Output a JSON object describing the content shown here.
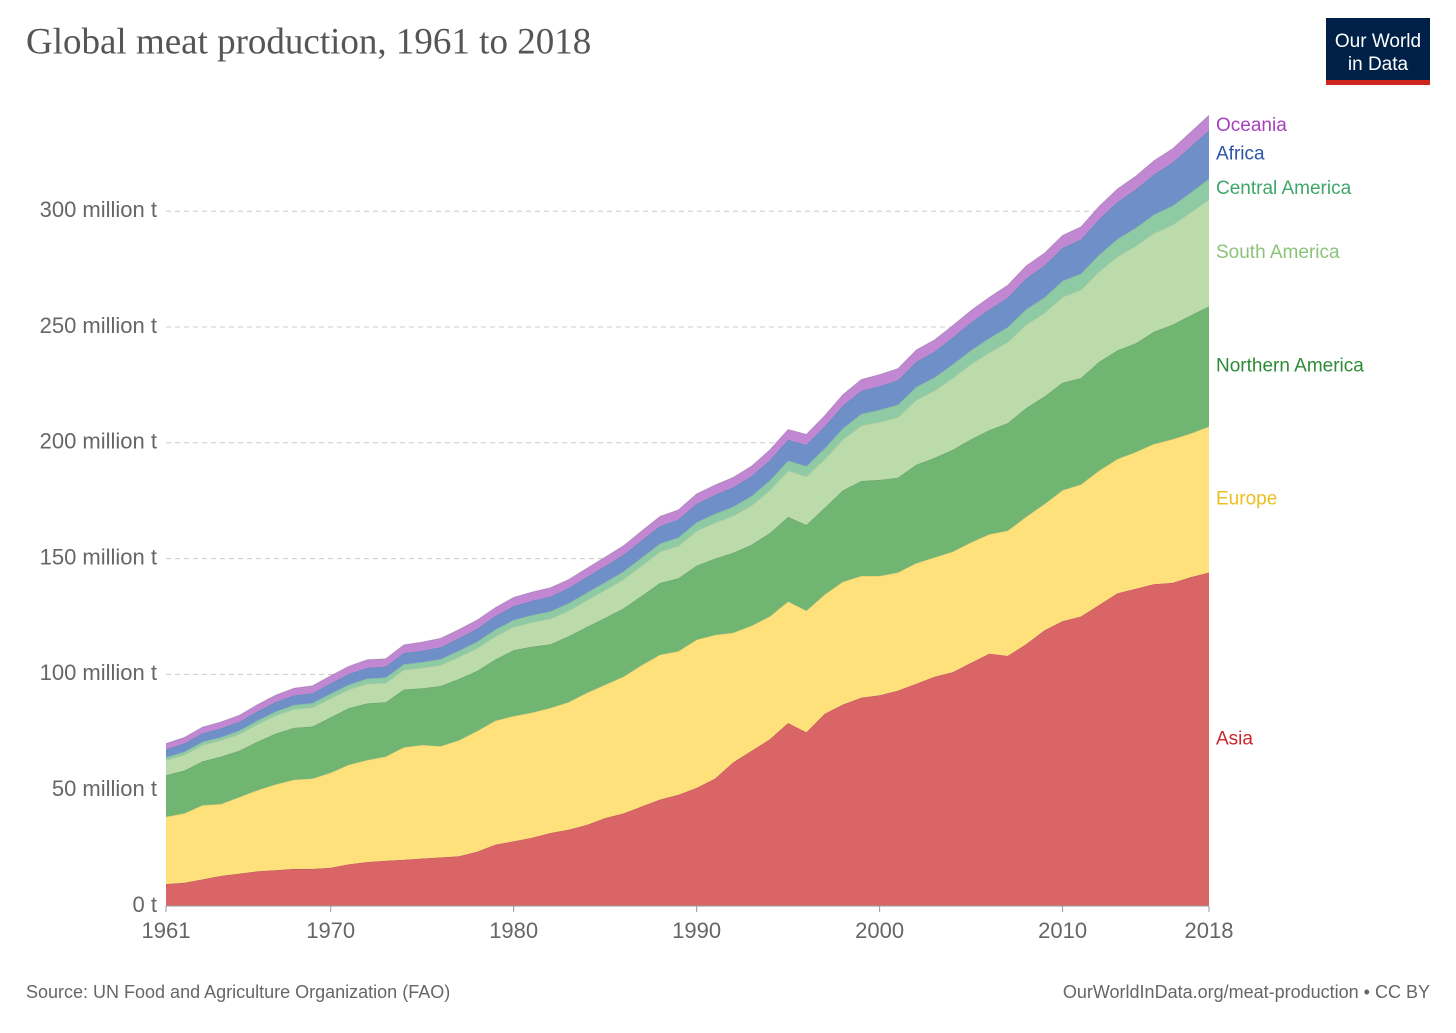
{
  "chart_data": {
    "type": "stacked-area",
    "title": "Global meat production, 1961 to 2018",
    "logo": [
      "Our World",
      "in Data"
    ],
    "source": "Source: UN Food and Agriculture Organization (FAO)",
    "credit": "OurWorldInData.org/meat-production • CC BY",
    "x": [
      1961,
      1962,
      1963,
      1964,
      1965,
      1966,
      1967,
      1968,
      1969,
      1970,
      1971,
      1972,
      1973,
      1974,
      1975,
      1976,
      1977,
      1978,
      1979,
      1980,
      1981,
      1982,
      1983,
      1984,
      1985,
      1986,
      1987,
      1988,
      1989,
      1990,
      1991,
      1992,
      1993,
      1994,
      1995,
      1996,
      1997,
      1998,
      1999,
      2000,
      2001,
      2002,
      2003,
      2004,
      2005,
      2006,
      2007,
      2008,
      2009,
      2010,
      2011,
      2012,
      2013,
      2014,
      2015,
      2016,
      2017,
      2018
    ],
    "xlim": [
      1961,
      2018
    ],
    "xticks": [
      1961,
      1970,
      1980,
      1990,
      2000,
      2010,
      2018
    ],
    "ylim": [
      0,
      345
    ],
    "yticks": [
      {
        "value": 0,
        "label": "0 t"
      },
      {
        "value": 50,
        "label": "50 million t"
      },
      {
        "value": 100,
        "label": "100 million t"
      },
      {
        "value": 150,
        "label": "150 million t"
      },
      {
        "value": 200,
        "label": "200 million t"
      },
      {
        "value": 250,
        "label": "250 million t"
      },
      {
        "value": 300,
        "label": "300 million t"
      }
    ],
    "grid": true,
    "series": [
      {
        "name": "Asia",
        "color": "#da6566",
        "label_color": "#c9262b",
        "values": [
          9.5,
          10,
          11.5,
          13,
          14,
          15,
          15.5,
          16,
          16,
          16.5,
          18,
          19,
          19.5,
          20,
          20.5,
          21,
          21.5,
          23.5,
          26.5,
          28,
          29.5,
          31.5,
          33,
          35,
          38,
          40,
          43,
          46,
          48,
          51,
          55,
          62,
          67,
          72,
          79,
          75,
          83,
          87,
          90,
          91,
          93,
          96,
          99,
          101,
          105,
          109,
          108,
          113,
          119,
          123,
          125,
          130,
          135,
          137,
          139,
          139.5,
          142,
          144
        ]
      },
      {
        "name": "Europe",
        "color": "#fee17a",
        "label_color": "#e9c01f",
        "values": [
          29,
          30,
          32,
          31,
          33,
          35,
          37,
          38.5,
          39,
          41,
          43,
          44,
          45,
          48.5,
          49,
          48,
          50,
          52,
          53.5,
          54,
          54,
          54,
          55,
          57,
          57.5,
          59,
          61,
          62.5,
          62,
          64,
          62,
          56,
          54,
          53,
          52.5,
          52.5,
          51.5,
          53,
          52.5,
          51.5,
          51,
          52,
          51.5,
          52,
          52,
          51.5,
          54,
          55,
          54.5,
          56.5,
          57,
          58,
          58,
          59,
          60.5,
          62,
          62,
          63
        ]
      },
      {
        "name": "Northern America",
        "color": "#71b573",
        "label_color": "#2e8b35",
        "values": [
          18,
          18.5,
          19,
          20.5,
          20,
          21,
          22,
          22.5,
          22.5,
          24,
          24.5,
          24.5,
          23.5,
          25,
          24.5,
          26,
          26.5,
          26,
          26.5,
          28.5,
          28.5,
          27.5,
          28.5,
          28.5,
          29,
          29.5,
          30,
          31,
          31.5,
          32,
          33,
          34.5,
          35,
          36,
          36.5,
          37,
          37.5,
          39.5,
          41,
          41.5,
          41,
          42.5,
          43,
          44,
          44.5,
          45,
          46.5,
          47,
          46.5,
          46.5,
          46,
          47,
          47,
          47,
          48.5,
          49.5,
          51,
          52
        ]
      },
      {
        "name": "South America",
        "color": "#bcdbab",
        "label_color": "#8cc37a",
        "values": [
          6.5,
          6.8,
          7,
          7,
          7.2,
          7.5,
          7.8,
          8,
          8.2,
          8.2,
          8,
          8.5,
          8.3,
          8.5,
          8.8,
          9,
          9.5,
          9.8,
          10,
          10,
          10.5,
          11,
          11,
          11.5,
          12,
          12.5,
          13,
          13.5,
          14,
          15,
          15.5,
          16,
          17,
          18.5,
          20,
          21,
          21,
          22,
          24,
          25,
          26,
          28,
          29,
          31,
          32.5,
          33.5,
          35,
          36,
          36,
          37,
          38,
          39,
          40.5,
          42,
          42.5,
          43,
          44.5,
          46
        ]
      },
      {
        "name": "Central America",
        "color": "#8ecba5",
        "label_color": "#3fa66a",
        "values": [
          1.2,
          1.3,
          1.4,
          1.4,
          1.5,
          1.6,
          1.7,
          1.8,
          1.9,
          2.0,
          2.1,
          2.2,
          2.3,
          2.4,
          2.5,
          2.6,
          2.7,
          2.8,
          2.9,
          3.0,
          3.1,
          3.2,
          3.2,
          3.3,
          3.3,
          3.4,
          3.5,
          3.5,
          3.6,
          3.7,
          3.8,
          3.9,
          4.0,
          4.2,
          4.3,
          4.4,
          4.6,
          4.8,
          5.0,
          5.2,
          5.4,
          5.6,
          5.7,
          5.9,
          6.0,
          6.2,
          6.4,
          6.6,
          6.7,
          6.9,
          7.0,
          7.2,
          7.5,
          7.8,
          8.1,
          8.3,
          8.6,
          9.0
        ]
      },
      {
        "name": "Africa",
        "color": "#6e8fc7",
        "label_color": "#2c55a5",
        "values": [
          3.5,
          3.6,
          3.7,
          3.8,
          3.9,
          4.0,
          4.1,
          4.2,
          4.3,
          4.5,
          4.6,
          4.7,
          4.8,
          4.9,
          5.0,
          5.2,
          5.4,
          5.6,
          5.8,
          6.0,
          6.2,
          6.4,
          6.6,
          6.8,
          7.0,
          7.2,
          7.4,
          7.6,
          7.8,
          8.0,
          8.2,
          8.4,
          8.6,
          8.8,
          9.0,
          9.2,
          9.5,
          9.8,
          10.0,
          10.3,
          10.6,
          10.9,
          11.2,
          11.6,
          12.0,
          12.4,
          12.8,
          13.3,
          13.8,
          14.3,
          14.8,
          15.4,
          16.0,
          16.6,
          17.3,
          18.6,
          19.8,
          21.0
        ]
      },
      {
        "name": "Oceania",
        "color": "#c287d2",
        "label_color": "#a73fbf",
        "values": [
          2.5,
          2.6,
          2.7,
          2.8,
          2.8,
          2.9,
          3.0,
          3.1,
          3.2,
          3.3,
          3.4,
          3.5,
          3.4,
          3.5,
          3.7,
          3.8,
          3.8,
          3.8,
          3.7,
          3.8,
          3.8,
          3.9,
          3.7,
          3.8,
          3.9,
          4.0,
          4.1,
          4.2,
          4.2,
          4.3,
          4.3,
          4.3,
          4.4,
          4.5,
          4.5,
          4.6,
          4.7,
          4.8,
          4.9,
          5.0,
          5.1,
          5.1,
          5.1,
          5.2,
          5.2,
          5.3,
          5.4,
          5.5,
          5.4,
          5.4,
          5.5,
          5.6,
          5.7,
          5.8,
          6.0,
          6.1,
          6.3,
          6.5
        ]
      }
    ]
  }
}
